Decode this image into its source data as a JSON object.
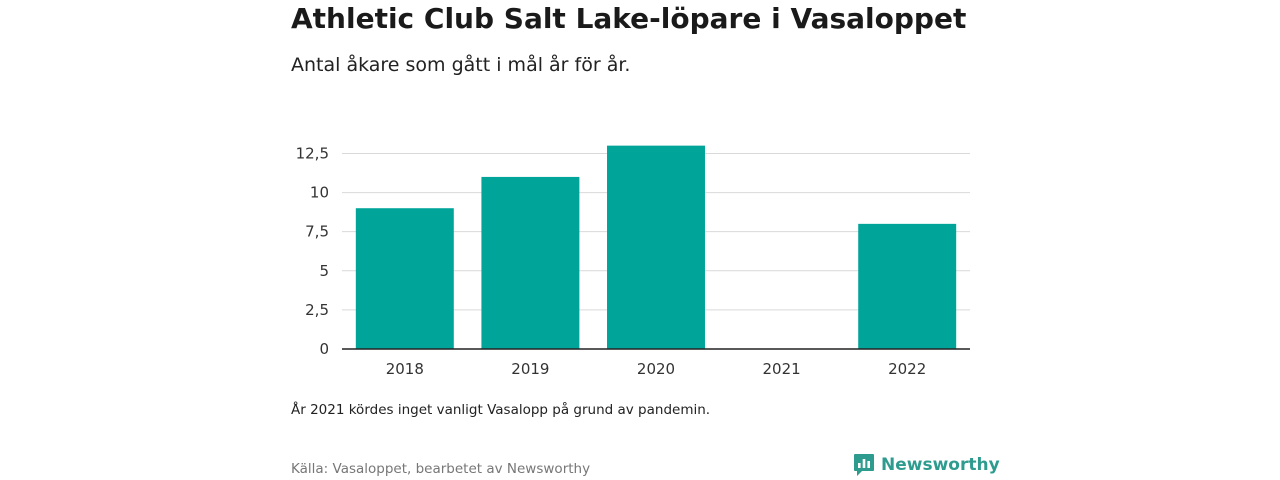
{
  "header": {
    "title": "Athletic Club Salt Lake-löpare i Vasaloppet",
    "subtitle": "Antal åkare som gått i mål år för år."
  },
  "chart_data": {
    "type": "bar",
    "categories": [
      "2018",
      "2019",
      "2020",
      "2021",
      "2022"
    ],
    "series": [
      {
        "values": [
          9,
          11,
          13,
          null,
          8
        ]
      }
    ],
    "ylim": [
      0,
      14
    ],
    "yticks": [
      0,
      2.5,
      5,
      7.5,
      10,
      12.5
    ],
    "ytick_labels": [
      "0",
      "2,5",
      "5",
      "7,5",
      "10",
      "12,5"
    ],
    "grid": true,
    "bar_color": "#00a499"
  },
  "footer": {
    "note": "År 2021 kördes inget vanligt Vasalopp på grund av pandemin.",
    "source": "Källa: Vasaloppet, bearbetet av Newsworthy",
    "brand": "Newsworthy",
    "brand_color": "#2e9b8f"
  }
}
